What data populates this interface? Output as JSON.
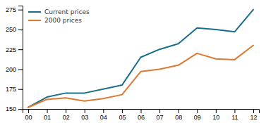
{
  "chart_data": {
    "type": "line",
    "x": [
      0,
      1,
      2,
      3,
      4,
      5,
      6,
      7,
      8,
      9,
      10,
      11,
      12
    ],
    "series": [
      {
        "name": "Current prices",
        "color": "#1a6e8a",
        "values": [
          152,
          165,
          170,
          170,
          175,
          180,
          215,
          225,
          232,
          252,
          250,
          247,
          275
        ]
      },
      {
        "name": "2000 prices",
        "color": "#e07832",
        "values": [
          152,
          162,
          164,
          160,
          163,
          168,
          197,
          200,
          205,
          220,
          213,
          212,
          230
        ]
      }
    ],
    "xlim": [
      -0.3,
      12.3
    ],
    "xticks": [
      {
        "value": 0,
        "label": "00"
      },
      {
        "value": 1,
        "label": "01"
      },
      {
        "value": 2,
        "label": "02"
      },
      {
        "value": 3,
        "label": "03"
      },
      {
        "value": 4,
        "label": "04"
      },
      {
        "value": 5,
        "label": "05"
      },
      {
        "value": 6,
        "label": "06"
      },
      {
        "value": 7,
        "label": "07"
      },
      {
        "value": 8,
        "label": "08"
      },
      {
        "value": 9,
        "label": "09"
      },
      {
        "value": 10,
        "label": "10"
      },
      {
        "value": 11,
        "label": "11"
      },
      {
        "value": 12,
        "label": "12"
      }
    ],
    "ylim": [
      150,
      280
    ],
    "yticks": [
      150,
      175,
      200,
      225,
      250,
      275
    ],
    "grid": false,
    "legend": "upper left"
  }
}
